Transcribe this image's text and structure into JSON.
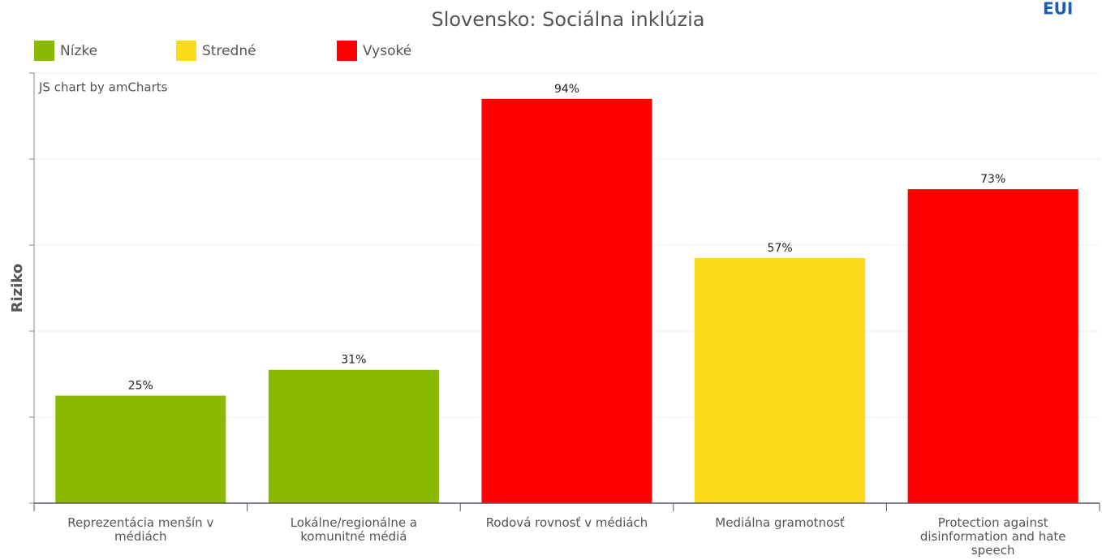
{
  "chart_data": {
    "type": "bar",
    "title": "Slovensko: Sociálna inklúzia",
    "credit": "JS chart by amCharts",
    "logo": "EUI",
    "y_label": "Riziko",
    "categories": [
      "Reprezentácia menšín v médiách",
      "Lokálne/regionálne a komunitné médiá",
      "Rodová rovnosť v médiách",
      "Mediálna gramotnosť",
      "Protection against disinformation and hate speech"
    ],
    "values": [
      25,
      31,
      94,
      57,
      73
    ],
    "value_labels": [
      "25%",
      "31%",
      "94%",
      "57%",
      "73%"
    ],
    "colors": [
      "#8aba00",
      "#8aba00",
      "#ff0000",
      "#fcdc1a",
      "#ff0000"
    ],
    "legend": [
      {
        "name": "Nízke",
        "color": "#8aba00"
      },
      {
        "name": "Stredné",
        "color": "#fcdc1a"
      },
      {
        "name": "Vysoké",
        "color": "#ff0000"
      }
    ],
    "ylim": [
      0,
      100
    ],
    "yticks": [
      0,
      20,
      40,
      60,
      80,
      100
    ],
    "grid": true
  }
}
